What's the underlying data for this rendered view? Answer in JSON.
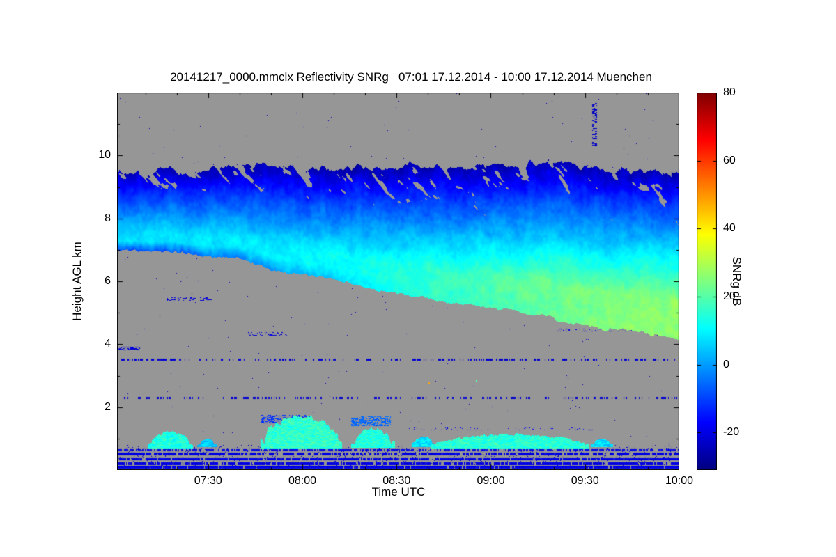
{
  "chart_data": {
    "type": "heatmap",
    "title": "20141217_0000.mmclx Reflectivity SNRg   07:01 17.12.2014 - 10:00 17.12.2014 Muenchen",
    "xlabel": "Time UTC",
    "ylabel": "Height AGL km",
    "x_range_hours": [
      7.0167,
      10.0
    ],
    "ylim_km": [
      0,
      12
    ],
    "x_ticks": [
      {
        "label": "07:30",
        "hour": 7.5
      },
      {
        "label": "08:00",
        "hour": 8.0
      },
      {
        "label": "08:30",
        "hour": 8.5
      },
      {
        "label": "09:00",
        "hour": 9.0
      },
      {
        "label": "09:30",
        "hour": 9.5
      },
      {
        "label": "10:00",
        "hour": 10.0
      }
    ],
    "x_minor_per_hour": 6,
    "y_ticks": [
      {
        "label": "2",
        "km": 2
      },
      {
        "label": "4",
        "km": 4
      },
      {
        "label": "6",
        "km": 6
      },
      {
        "label": "8",
        "km": 8
      },
      {
        "label": "10",
        "km": 10
      }
    ],
    "y_minor_step_km": 1,
    "colorbar": {
      "label": "SNRg dB",
      "colormap": "jet",
      "range_db": [
        -31,
        80
      ],
      "ticks": [
        {
          "label": "80",
          "db": 80
        },
        {
          "label": "60",
          "db": 60
        },
        {
          "label": "40",
          "db": 40
        },
        {
          "label": "20",
          "db": 20
        },
        {
          "label": "0",
          "db": 0
        },
        {
          "label": "-20",
          "db": -20
        }
      ]
    },
    "no_data_color": "#969696",
    "units": "dB",
    "description": "Cloud radar time-height quicklook: descending mid/high cloud layer (SNR -26 to +26 dB), boundary-layer cloud patches near 1 km, ground clutter lines below 0.7 km, sparse noise speckles.",
    "features": {
      "cloud_layer": {
        "top_km": [
          [
            7.02,
            9.5
          ],
          [
            7.3,
            9.6
          ],
          [
            7.8,
            9.65
          ],
          [
            8.3,
            9.6
          ],
          [
            8.8,
            9.65
          ],
          [
            9.2,
            9.7
          ],
          [
            9.6,
            9.55
          ],
          [
            10.0,
            9.4
          ]
        ],
        "base_km": [
          [
            7.02,
            7.0
          ],
          [
            7.25,
            6.9
          ],
          [
            7.45,
            6.85
          ],
          [
            7.7,
            6.6
          ],
          [
            8.0,
            6.2
          ],
          [
            8.3,
            5.85
          ],
          [
            8.6,
            5.5
          ],
          [
            9.0,
            5.15
          ],
          [
            9.3,
            4.85
          ],
          [
            9.6,
            4.5
          ],
          [
            10.0,
            4.15
          ]
        ],
        "peak_snr_db": [
          [
            7.02,
            7
          ],
          [
            7.6,
            8
          ],
          [
            8.0,
            10
          ],
          [
            8.5,
            14
          ],
          [
            9.0,
            19
          ],
          [
            9.4,
            23
          ],
          [
            10.0,
            26
          ]
        ]
      },
      "boundary_layer_clouds": {
        "blobs": [
          {
            "t0": 7.2,
            "t1": 7.4,
            "base_km": 0.72,
            "top_km": 1.12,
            "snr_db": 14
          },
          {
            "t0": 7.46,
            "t1": 7.53,
            "base_km": 0.78,
            "top_km": 0.96,
            "snr_db": 5
          },
          {
            "t0": 7.8,
            "t1": 8.19,
            "base_km": 0.72,
            "top_km": 1.55,
            "snr_db": 16
          },
          {
            "t0": 8.28,
            "t1": 8.47,
            "base_km": 0.74,
            "top_km": 1.2,
            "snr_db": 14
          },
          {
            "t0": 8.6,
            "t1": 8.69,
            "base_km": 0.8,
            "top_km": 1.02,
            "snr_db": 8
          },
          {
            "t0": 8.7,
            "t1": 9.5,
            "base_km": 0.72,
            "top_km": 1.05,
            "snr_db": 15
          },
          {
            "t0": 9.55,
            "t1": 9.63,
            "base_km": 0.78,
            "top_km": 0.95,
            "snr_db": 7
          }
        ]
      },
      "speckle_patches": [
        {
          "t0": 7.78,
          "t1": 8.05,
          "h0": 1.48,
          "h1": 1.76,
          "thr": 0.52,
          "snr_db": -12
        },
        {
          "t0": 8.26,
          "t1": 8.47,
          "h0": 1.4,
          "h1": 1.7,
          "thr": 0.5,
          "snr_db": -6
        },
        {
          "t0": 8.55,
          "t1": 9.55,
          "h0": 1.26,
          "h1": 1.36,
          "thr": 0.74,
          "snr_db": -18
        },
        {
          "t0": 7.28,
          "t1": 7.52,
          "h0": 5.38,
          "h1": 5.48,
          "thr": 0.6,
          "snr_db": -21
        },
        {
          "t0": 7.7,
          "t1": 7.92,
          "h0": 4.28,
          "h1": 4.38,
          "thr": 0.65,
          "snr_db": -21
        },
        {
          "t0": 7.02,
          "t1": 7.14,
          "h0": 3.8,
          "h1": 3.92,
          "thr": 0.5,
          "snr_db": -21
        },
        {
          "t0": 9.35,
          "t1": 9.98,
          "h0": 4.4,
          "h1": 4.5,
          "thr": 0.7,
          "snr_db": -20
        }
      ],
      "clutter_lines": [
        {
          "km": 0.64,
          "gap_thr": 0.42
        },
        {
          "km": 0.51,
          "gap_thr": 0.36
        },
        {
          "km": 0.35,
          "gap_thr": 0.28
        },
        {
          "km": 0.2,
          "gap_thr": 0.32
        },
        {
          "km": 0.09,
          "gap_thr": 0.22
        }
      ],
      "speckle_lines": [
        {
          "km": 2.3,
          "thr": 0.63
        },
        {
          "km": 3.5,
          "thr": 0.62,
          "dense": [
            [
              7.03,
              7.33,
              0.45
            ],
            [
              8.55,
              9.6,
              0.55
            ]
          ]
        }
      ],
      "speckle_column": {
        "t": 9.55,
        "half_w": 0.013,
        "h0": 10.3,
        "h1": 11.7
      },
      "hot_pixels": [
        {
          "t": 8.67,
          "h": 2.78,
          "snr_db": 48
        },
        {
          "t": 8.92,
          "h": 2.85,
          "snr_db": 20
        }
      ]
    }
  }
}
